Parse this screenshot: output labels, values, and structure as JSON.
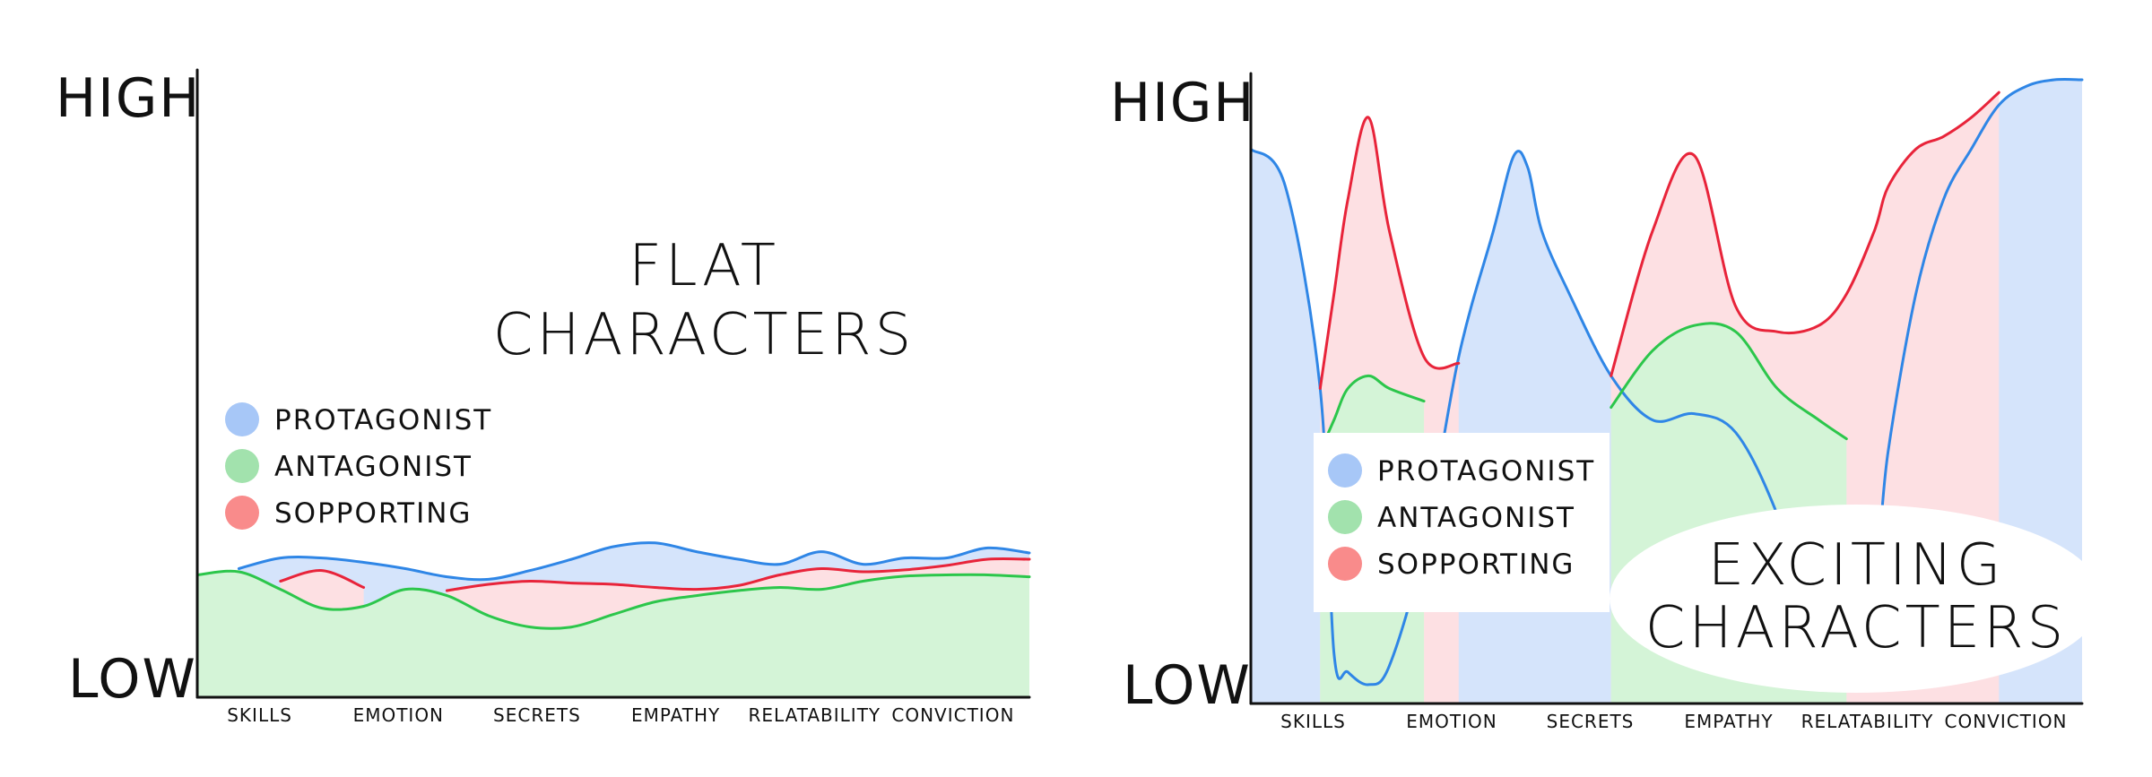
{
  "chart_data": [
    {
      "type": "area",
      "title": "FLAT CHARACTERS",
      "ylabel_high": "HIGH",
      "ylabel_low": "LOW",
      "categories": [
        "SKILLS",
        "EMOTION",
        "SECRETS",
        "EMPATHY",
        "RELATABILITY",
        "CONVICTION"
      ],
      "ylim": [
        0,
        10
      ],
      "legend": {
        "position": "left",
        "items": [
          {
            "label": "PROTAGONIST",
            "color": "#a7c7f7"
          },
          {
            "label": "ANTAGONIST",
            "color": "#a2e2ad"
          },
          {
            "label": "SOPPORTING",
            "color": "#f98b8b"
          }
        ]
      },
      "x": [
        0,
        0.3,
        0.6,
        0.9,
        1.2,
        1.5,
        1.8,
        2.1,
        2.4,
        2.7,
        3.0,
        3.3,
        3.6,
        3.9,
        4.2,
        4.5,
        4.8,
        5.1,
        5.4,
        5.7,
        6.0
      ],
      "series": [
        {
          "name": "PROTAGONIST",
          "color": "#2f86e6",
          "fill": "#d5e4fb",
          "values": [
            null,
            2.05,
            2.22,
            2.22,
            2.15,
            2.05,
            1.92,
            1.88,
            2.02,
            2.2,
            2.4,
            2.46,
            2.32,
            2.2,
            2.12,
            2.32,
            2.12,
            2.22,
            2.22,
            2.38,
            2.3
          ]
        },
        {
          "name": "SOPPORTING",
          "color": "#e8243a",
          "fill": "#fde0e3",
          "values": [
            null,
            null,
            1.85,
            2.02,
            1.75,
            null,
            1.7,
            1.8,
            1.85,
            1.82,
            1.8,
            1.75,
            1.72,
            1.78,
            1.95,
            2.05,
            2.0,
            2.03,
            2.1,
            2.2,
            2.2
          ]
        },
        {
          "name": "ANTAGONIST",
          "color": "#2cc64b",
          "fill": "#d4f4d7",
          "values": [
            1.95,
            2.0,
            1.72,
            1.42,
            1.45,
            1.72,
            1.62,
            1.3,
            1.12,
            1.12,
            1.32,
            1.52,
            1.62,
            1.7,
            1.75,
            1.72,
            1.85,
            1.93,
            1.95,
            1.95,
            1.92
          ]
        }
      ]
    },
    {
      "type": "area",
      "title": "EXCITING CHARACTERS",
      "ylabel_high": "HIGH",
      "ylabel_low": "LOW",
      "categories": [
        "SKILLS",
        "EMOTION",
        "SECRETS",
        "EMPATHY",
        "RELATABILITY",
        "CONVICTION"
      ],
      "ylim": [
        0,
        10
      ],
      "legend": {
        "position": "bottom-left",
        "items": [
          {
            "label": "PROTAGONIST",
            "color": "#a7c7f7"
          },
          {
            "label": "ANTAGONIST",
            "color": "#a2e2ad"
          },
          {
            "label": "SOPPORTING",
            "color": "#f98b8b"
          }
        ]
      },
      "x": [
        0,
        0.25,
        0.5,
        0.6,
        0.7,
        0.85,
        1.0,
        1.25,
        1.5,
        1.75,
        1.9,
        2.0,
        2.1,
        2.3,
        2.6,
        2.9,
        3.2,
        3.5,
        3.8,
        4.1,
        4.3,
        4.5,
        4.6,
        4.8,
        5.0,
        5.2,
        5.4,
        5.6,
        5.8,
        6.0
      ],
      "series": [
        {
          "name": "PROTAGONIST",
          "color": "#2f86e6",
          "fill": "#d5e4fb",
          "values": [
            8.8,
            8.2,
            5.0,
            0.8,
            0.5,
            0.3,
            0.6,
            2.5,
            5.5,
            7.5,
            8.7,
            8.5,
            7.5,
            6.5,
            5.2,
            4.5,
            4.6,
            4.3,
            3.0,
            1.0,
            1.0,
            2.0,
            4.0,
            6.5,
            8.0,
            8.8,
            9.5,
            9.8,
            9.9,
            9.9
          ]
        },
        {
          "name": "SOPPORTING",
          "color": "#e8243a",
          "fill": "#fde0e3",
          "values": [
            null,
            null,
            5.0,
            6.5,
            8.0,
            9.3,
            7.5,
            5.5,
            5.4,
            null,
            null,
            null,
            null,
            null,
            5.2,
            7.5,
            8.7,
            6.3,
            5.9,
            6.0,
            6.5,
            7.5,
            8.2,
            8.8,
            9.0,
            9.3,
            9.7,
            null,
            null,
            null
          ]
        },
        {
          "name": "ANTAGONIST",
          "color": "#2cc64b",
          "fill": "#d4f4d7",
          "values": [
            null,
            null,
            4.0,
            4.5,
            5.0,
            5.2,
            5.0,
            4.8,
            null,
            null,
            null,
            null,
            null,
            null,
            4.7,
            5.6,
            6.0,
            5.9,
            5.0,
            4.5,
            4.2,
            null,
            null,
            null,
            null,
            null,
            null,
            null,
            null,
            null
          ]
        }
      ]
    }
  ]
}
